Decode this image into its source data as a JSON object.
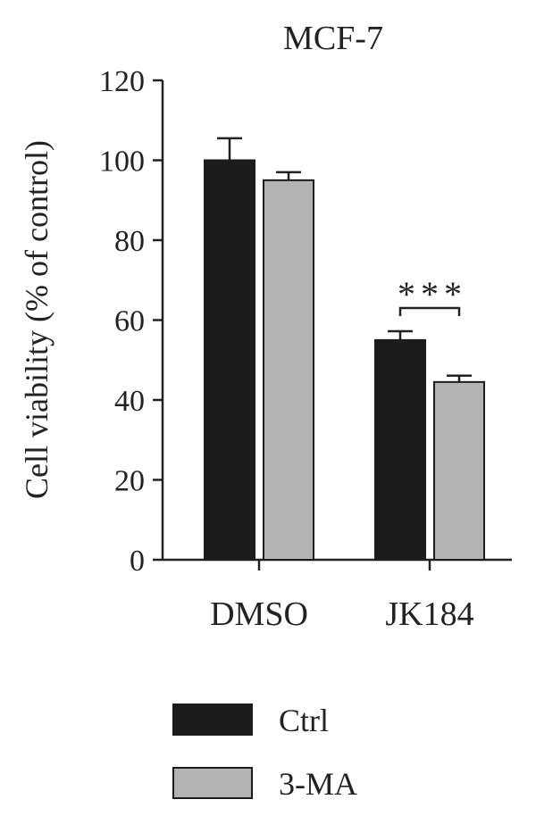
{
  "chart_data": {
    "type": "bar",
    "title": "MCF-7",
    "xlabel": "",
    "ylabel": "Cell viability (% of control)",
    "ylim": [
      0,
      120
    ],
    "yticks": [
      0,
      20,
      40,
      60,
      80,
      100,
      120
    ],
    "categories": [
      "DMSO",
      "JK184"
    ],
    "series": [
      {
        "name": "Ctrl",
        "values": [
          100,
          55
        ],
        "errors": [
          5.5,
          2.2
        ],
        "color": "#1c1c1c"
      },
      {
        "name": "3-MA",
        "values": [
          95,
          44.5
        ],
        "errors": [
          2.0,
          1.6
        ],
        "color": "#b3b3b3"
      }
    ],
    "annotations": [
      {
        "category": "JK184",
        "text": "***"
      }
    ],
    "legend": {
      "placement": "bottom"
    },
    "grid": false
  }
}
